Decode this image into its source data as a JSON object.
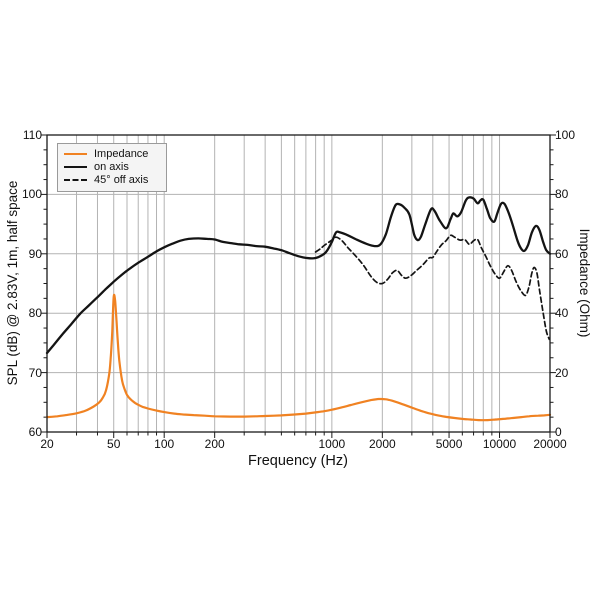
{
  "chart_data": {
    "type": "line",
    "title": "",
    "xlabel": "Frequency (Hz)",
    "ylabel_left": "SPL (dB) @ 2.83V, 1m, half space",
    "ylabel_right": "Impedance (Ohm)",
    "x_scale": "log",
    "x_range": [
      20,
      20000
    ],
    "y_left_range": [
      60,
      110
    ],
    "y_right_range": [
      0,
      100
    ],
    "grid": "vertical log minor lines; horizontal lines every 10 dB / 20 Ohm",
    "legend_position": "top-left",
    "colors": {
      "impedance": "#F08222",
      "curves": "#141414",
      "grid": "#b3b3b3",
      "frame": "#1a1a1a",
      "legend_bg": "#f4f4f4"
    },
    "x_ticks": [
      {
        "value": 20,
        "label": "20"
      },
      {
        "value": 50,
        "label": "50"
      },
      {
        "value": 100,
        "label": "100"
      },
      {
        "value": 200,
        "label": "200"
      },
      {
        "value": 1000,
        "label": "1000"
      },
      {
        "value": 2000,
        "label": "2000"
      },
      {
        "value": 5000,
        "label": "5000"
      },
      {
        "value": 10000,
        "label": "10000"
      },
      {
        "value": 20000,
        "label": "20000"
      }
    ],
    "y_left_ticks": [
      {
        "value": 60,
        "label": "60"
      },
      {
        "value": 70,
        "label": "70"
      },
      {
        "value": 80,
        "label": "80"
      },
      {
        "value": 90,
        "label": "90"
      },
      {
        "value": 100,
        "label": "100"
      },
      {
        "value": 110,
        "label": "110"
      }
    ],
    "y_right_ticks": [
      {
        "value": 0,
        "label": "0"
      },
      {
        "value": 20,
        "label": "20"
      },
      {
        "value": 40,
        "label": "40"
      },
      {
        "value": 60,
        "label": "60"
      },
      {
        "value": 80,
        "label": "80"
      },
      {
        "value": 100,
        "label": "100"
      }
    ],
    "y_left_minor_step": 2.5,
    "y_right_minor_step": 5,
    "series": [
      {
        "name": "Impedance",
        "axis": "right",
        "unit": "Ohm",
        "color": "#F08222",
        "style": "solid",
        "width": 2.2,
        "points": [
          [
            20,
            5.0
          ],
          [
            23,
            5.3
          ],
          [
            26,
            5.7
          ],
          [
            30,
            6.3
          ],
          [
            34,
            7.2
          ],
          [
            38,
            8.6
          ],
          [
            41,
            10.0
          ],
          [
            43,
            11.5
          ],
          [
            45,
            14.0
          ],
          [
            47,
            19.5
          ],
          [
            48,
            25.0
          ],
          [
            49,
            34.0
          ],
          [
            50,
            45.5
          ],
          [
            51,
            44.0
          ],
          [
            52,
            37.0
          ],
          [
            53,
            29.5
          ],
          [
            54,
            24.0
          ],
          [
            56,
            17.5
          ],
          [
            58,
            14.5
          ],
          [
            60,
            12.5
          ],
          [
            63,
            11.0
          ],
          [
            67,
            9.8
          ],
          [
            71,
            9.0
          ],
          [
            75,
            8.4
          ],
          [
            80,
            7.9
          ],
          [
            90,
            7.2
          ],
          [
            100,
            6.7
          ],
          [
            115,
            6.2
          ],
          [
            130,
            5.9
          ],
          [
            150,
            5.7
          ],
          [
            175,
            5.5
          ],
          [
            200,
            5.3
          ],
          [
            250,
            5.2
          ],
          [
            300,
            5.2
          ],
          [
            350,
            5.3
          ],
          [
            400,
            5.4
          ],
          [
            500,
            5.6
          ],
          [
            600,
            5.9
          ],
          [
            700,
            6.2
          ],
          [
            800,
            6.6
          ],
          [
            900,
            7.0
          ],
          [
            1000,
            7.5
          ],
          [
            1150,
            8.3
          ],
          [
            1300,
            9.1
          ],
          [
            1500,
            10.0
          ],
          [
            1700,
            10.7
          ],
          [
            1900,
            11.1
          ],
          [
            2100,
            11.0
          ],
          [
            2300,
            10.5
          ],
          [
            2600,
            9.5
          ],
          [
            3000,
            8.2
          ],
          [
            3400,
            7.1
          ],
          [
            3800,
            6.3
          ],
          [
            4300,
            5.6
          ],
          [
            4800,
            5.1
          ],
          [
            5400,
            4.7
          ],
          [
            6000,
            4.4
          ],
          [
            6700,
            4.2
          ],
          [
            7500,
            4.0
          ],
          [
            8500,
            4.0
          ],
          [
            9500,
            4.2
          ],
          [
            10500,
            4.4
          ],
          [
            12000,
            4.7
          ],
          [
            13500,
            5.0
          ],
          [
            15000,
            5.3
          ],
          [
            17000,
            5.5
          ],
          [
            18500,
            5.6
          ],
          [
            20000,
            5.8
          ]
        ]
      },
      {
        "name": "on axis",
        "axis": "left",
        "unit": "dB",
        "color": "#141414",
        "style": "solid",
        "width": 2.3,
        "points": [
          [
            20,
            73.3
          ],
          [
            22,
            74.7
          ],
          [
            25,
            76.6
          ],
          [
            28,
            78.2
          ],
          [
            31.5,
            79.9
          ],
          [
            35.5,
            81.3
          ],
          [
            40,
            82.7
          ],
          [
            45,
            84.1
          ],
          [
            50,
            85.3
          ],
          [
            56,
            86.5
          ],
          [
            63,
            87.6
          ],
          [
            71,
            88.6
          ],
          [
            80,
            89.5
          ],
          [
            90,
            90.4
          ],
          [
            100,
            91.1
          ],
          [
            112,
            91.7
          ],
          [
            125,
            92.2
          ],
          [
            140,
            92.5
          ],
          [
            160,
            92.6
          ],
          [
            180,
            92.5
          ],
          [
            200,
            92.4
          ],
          [
            224,
            92.0
          ],
          [
            250,
            91.8
          ],
          [
            280,
            91.6
          ],
          [
            315,
            91.5
          ],
          [
            355,
            91.3
          ],
          [
            400,
            91.2
          ],
          [
            450,
            90.9
          ],
          [
            500,
            90.6
          ],
          [
            560,
            90.1
          ],
          [
            630,
            89.6
          ],
          [
            710,
            89.3
          ],
          [
            800,
            89.3
          ],
          [
            900,
            90.0
          ],
          [
            950,
            90.8
          ],
          [
            1000,
            92.0
          ],
          [
            1060,
            93.6
          ],
          [
            1120,
            93.6
          ],
          [
            1250,
            93.1
          ],
          [
            1400,
            92.4
          ],
          [
            1600,
            91.7
          ],
          [
            1800,
            91.3
          ],
          [
            1950,
            91.6
          ],
          [
            2100,
            93.3
          ],
          [
            2250,
            96.2
          ],
          [
            2400,
            98.2
          ],
          [
            2550,
            98.3
          ],
          [
            2700,
            97.8
          ],
          [
            2900,
            96.6
          ],
          [
            3100,
            93.2
          ],
          [
            3250,
            92.3
          ],
          [
            3400,
            92.9
          ],
          [
            3600,
            94.9
          ],
          [
            3900,
            97.5
          ],
          [
            4100,
            97.2
          ],
          [
            4400,
            95.6
          ],
          [
            4800,
            94.3
          ],
          [
            5100,
            95.8
          ],
          [
            5300,
            96.8
          ],
          [
            5600,
            96.3
          ],
          [
            5900,
            97.0
          ],
          [
            6300,
            99.0
          ],
          [
            6600,
            99.5
          ],
          [
            7000,
            99.3
          ],
          [
            7400,
            98.5
          ],
          [
            7700,
            99.0
          ],
          [
            8000,
            99.1
          ],
          [
            8400,
            97.6
          ],
          [
            8800,
            96.0
          ],
          [
            9300,
            95.4
          ],
          [
            9700,
            96.8
          ],
          [
            10200,
            98.4
          ],
          [
            10700,
            98.4
          ],
          [
            11300,
            97.0
          ],
          [
            12000,
            94.8
          ],
          [
            12800,
            92.2
          ],
          [
            13500,
            90.8
          ],
          [
            14100,
            90.5
          ],
          [
            14800,
            91.5
          ],
          [
            15600,
            93.6
          ],
          [
            16500,
            94.7
          ],
          [
            17300,
            94.0
          ],
          [
            18200,
            92.0
          ],
          [
            19000,
            90.6
          ],
          [
            20000,
            90.0
          ]
        ]
      },
      {
        "name": "45° off axis",
        "axis": "left",
        "unit": "dB",
        "color": "#141414",
        "style": "dashed",
        "width": 1.7,
        "points": [
          [
            800,
            90.3
          ],
          [
            850,
            90.8
          ],
          [
            900,
            91.4
          ],
          [
            1000,
            92.3
          ],
          [
            1060,
            92.8
          ],
          [
            1150,
            92.2
          ],
          [
            1250,
            91.0
          ],
          [
            1400,
            89.5
          ],
          [
            1550,
            88.0
          ],
          [
            1700,
            86.3
          ],
          [
            1850,
            85.2
          ],
          [
            2000,
            85.0
          ],
          [
            2150,
            85.7
          ],
          [
            2300,
            86.8
          ],
          [
            2450,
            87.2
          ],
          [
            2600,
            86.4
          ],
          [
            2750,
            85.9
          ],
          [
            2950,
            86.3
          ],
          [
            3200,
            87.2
          ],
          [
            3500,
            88.2
          ],
          [
            3800,
            89.3
          ],
          [
            4000,
            89.4
          ],
          [
            4200,
            90.3
          ],
          [
            4500,
            91.5
          ],
          [
            4800,
            92.2
          ],
          [
            5100,
            93.1
          ],
          [
            5400,
            92.8
          ],
          [
            5800,
            92.3
          ],
          [
            6200,
            92.4
          ],
          [
            6600,
            91.6
          ],
          [
            7000,
            92.2
          ],
          [
            7400,
            92.4
          ],
          [
            7800,
            91.0
          ],
          [
            8300,
            89.5
          ],
          [
            8800,
            88.0
          ],
          [
            9400,
            86.6
          ],
          [
            10000,
            85.9
          ],
          [
            10600,
            87.0
          ],
          [
            11200,
            88.0
          ],
          [
            11800,
            87.2
          ],
          [
            12600,
            85.2
          ],
          [
            13400,
            83.8
          ],
          [
            14300,
            83.0
          ],
          [
            15000,
            84.5
          ],
          [
            15600,
            86.8
          ],
          [
            16100,
            87.7
          ],
          [
            16700,
            86.8
          ],
          [
            17300,
            84.0
          ],
          [
            18100,
            80.5
          ],
          [
            19000,
            77.0
          ],
          [
            19800,
            75.6
          ]
        ]
      }
    ]
  },
  "legend": {
    "entries": [
      {
        "label": "Impedance"
      },
      {
        "label": "on axis"
      },
      {
        "label": "45° off axis"
      }
    ]
  }
}
